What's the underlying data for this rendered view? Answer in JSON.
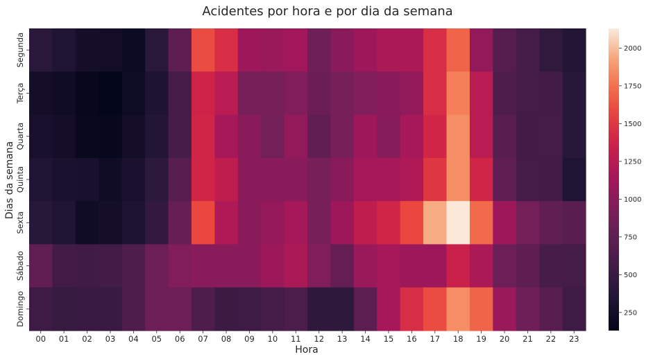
{
  "chart_data": {
    "type": "heatmap",
    "title": "Acidentes por hora e por dia da semana",
    "xlabel": "Hora",
    "ylabel": "Dias da semana",
    "x": [
      "00",
      "01",
      "02",
      "03",
      "04",
      "05",
      "06",
      "07",
      "08",
      "09",
      "10",
      "11",
      "12",
      "13",
      "14",
      "15",
      "16",
      "17",
      "18",
      "19",
      "20",
      "21",
      "22",
      "23"
    ],
    "y": [
      "Segunda",
      "Terça",
      "Quarta",
      "Quinta",
      "Sexta",
      "Sábado",
      "Domingo"
    ],
    "values": [
      [
        400,
        330,
        250,
        240,
        200,
        400,
        750,
        1600,
        1450,
        1100,
        1080,
        1130,
        850,
        1000,
        1100,
        1180,
        1180,
        1450,
        1700,
        1050,
        680,
        580,
        450,
        350
      ],
      [
        250,
        230,
        160,
        140,
        210,
        320,
        600,
        1380,
        1250,
        900,
        900,
        950,
        820,
        900,
        950,
        1000,
        1050,
        1450,
        1800,
        1250,
        650,
        580,
        560,
        380
      ],
      [
        280,
        250,
        170,
        160,
        250,
        350,
        600,
        1400,
        1150,
        1000,
        880,
        1050,
        760,
        900,
        1100,
        980,
        1150,
        1400,
        1850,
        1250,
        700,
        560,
        580,
        380
      ],
      [
        330,
        290,
        280,
        230,
        300,
        420,
        700,
        1400,
        1300,
        1000,
        1000,
        1000,
        900,
        1000,
        1150,
        1150,
        1200,
        1500,
        1850,
        1400,
        760,
        580,
        560,
        330
      ],
      [
        380,
        330,
        230,
        250,
        320,
        460,
        800,
        1580,
        1200,
        1000,
        1060,
        1150,
        900,
        1100,
        1300,
        1400,
        1580,
        1950,
        2120,
        1720,
        1100,
        880,
        760,
        700
      ],
      [
        760,
        560,
        550,
        560,
        650,
        830,
        950,
        1000,
        1000,
        1000,
        1100,
        1180,
        950,
        780,
        1080,
        1150,
        1100,
        1100,
        1350,
        1180,
        830,
        750,
        600,
        580
      ],
      [
        530,
        480,
        500,
        500,
        650,
        830,
        830,
        650,
        520,
        530,
        590,
        630,
        430,
        420,
        730,
        1150,
        1450,
        1600,
        1850,
        1700,
        1080,
        850,
        700,
        530
      ]
    ],
    "colorbar": {
      "range": [
        130,
        2130
      ],
      "ticks": [
        250,
        500,
        750,
        1000,
        1250,
        1500,
        1750,
        2000
      ],
      "colormap": "rocket"
    },
    "grid": false,
    "legend": "colorbar-right"
  }
}
